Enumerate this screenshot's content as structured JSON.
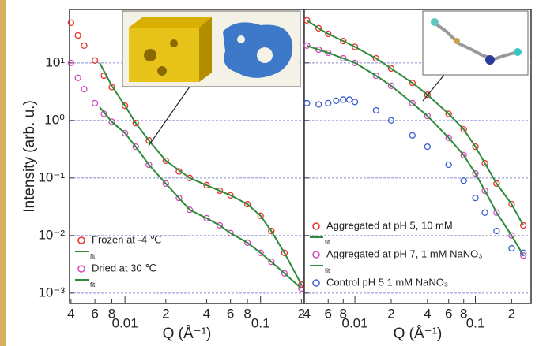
{
  "chart_data": [
    {
      "type": "scatter",
      "x_scale": "log",
      "y_scale": "log",
      "grid": true,
      "legend": "lower left",
      "ylabel": "Intensity (arb. u.)",
      "xlabel": "Q (Å⁻¹)",
      "xlim": [
        0.0039,
        0.21
      ],
      "ylim": [
        0.00066,
        85
      ],
      "xticks": [
        {
          "value": 0.004,
          "label": "4"
        },
        {
          "value": 0.006,
          "label": "6"
        },
        {
          "value": 0.008,
          "label": "8"
        },
        0.01,
        {
          "value": 0.02,
          "label": "2"
        },
        {
          "value": 0.04,
          "label": "4"
        },
        {
          "value": 0.06,
          "label": "6"
        },
        {
          "value": 0.08,
          "label": "8"
        },
        0.1,
        {
          "value": 0.2,
          "label": "2"
        }
      ],
      "yticks": [
        {
          "value": 0.001,
          "label": "10⁻³"
        },
        {
          "value": 0.01,
          "label": "10⁻²"
        },
        {
          "value": 0.1,
          "label": "10⁻¹"
        },
        {
          "value": 1,
          "label": "10⁰"
        },
        {
          "value": 10,
          "label": "10¹"
        }
      ],
      "series": [
        {
          "name": "Frozen at -4 ℃",
          "style": "markers",
          "color": "#e8302a",
          "x": [
            0.004,
            0.0045,
            0.005,
            0.006,
            0.007,
            0.008,
            0.01,
            0.012,
            0.015,
            0.02,
            0.025,
            0.03,
            0.04,
            0.05,
            0.06,
            0.08,
            0.1,
            0.12,
            0.15,
            0.2
          ],
          "values": [
            50,
            30,
            20,
            11,
            6,
            3.8,
            1.8,
            0.9,
            0.45,
            0.2,
            0.13,
            0.1,
            0.075,
            0.06,
            0.05,
            0.035,
            0.022,
            0.012,
            0.005,
            0.0014
          ]
        },
        {
          "name": "fit",
          "style": "line",
          "color": "#2e8b3a",
          "x": [
            0.0065,
            0.008,
            0.01,
            0.012,
            0.015,
            0.02,
            0.03,
            0.04,
            0.06,
            0.08,
            0.1,
            0.12,
            0.15,
            0.2
          ],
          "values": [
            10,
            4,
            1.8,
            0.9,
            0.45,
            0.2,
            0.1,
            0.075,
            0.05,
            0.035,
            0.022,
            0.012,
            0.005,
            0.0014
          ]
        },
        {
          "name": "Dried at 30 ℃",
          "style": "markers",
          "color": "#d646c0",
          "x": [
            0.004,
            0.0045,
            0.005,
            0.006,
            0.007,
            0.008,
            0.01,
            0.012,
            0.015,
            0.02,
            0.025,
            0.03,
            0.04,
            0.05,
            0.06,
            0.08,
            0.1,
            0.12,
            0.15,
            0.2
          ],
          "values": [
            10,
            5.5,
            3.5,
            2,
            1.3,
            0.95,
            0.6,
            0.35,
            0.17,
            0.08,
            0.045,
            0.028,
            0.02,
            0.015,
            0.011,
            0.0075,
            0.005,
            0.0035,
            0.0022,
            0.0012
          ]
        },
        {
          "name": "fit",
          "style": "line",
          "color": "#2e8b3a",
          "x": [
            0.0065,
            0.008,
            0.01,
            0.012,
            0.015,
            0.02,
            0.025,
            0.03,
            0.04,
            0.05,
            0.06,
            0.08,
            0.1,
            0.12,
            0.15,
            0.2
          ],
          "values": [
            1.7,
            0.95,
            0.6,
            0.35,
            0.17,
            0.08,
            0.045,
            0.028,
            0.02,
            0.015,
            0.011,
            0.0075,
            0.005,
            0.0035,
            0.0022,
            0.0012
          ]
        }
      ]
    },
    {
      "type": "scatter",
      "x_scale": "log",
      "y_scale": "log",
      "grid": true,
      "legend": "lower left",
      "xlabel": "Q (Å⁻¹)",
      "xlim": [
        0.0038,
        0.29
      ],
      "ylim": [
        0.00066,
        85
      ],
      "xticks": [
        {
          "value": 0.004,
          "label": "4"
        },
        {
          "value": 0.006,
          "label": "6"
        },
        {
          "value": 0.008,
          "label": "8"
        },
        0.01,
        {
          "value": 0.02,
          "label": "2"
        },
        {
          "value": 0.04,
          "label": "4"
        },
        {
          "value": 0.06,
          "label": "6"
        },
        {
          "value": 0.08,
          "label": "8"
        },
        0.1,
        {
          "value": 0.2,
          "label": "2"
        }
      ],
      "yticks": [
        0.001,
        0.01,
        0.1,
        1,
        10
      ],
      "series": [
        {
          "name": "Aggregated at pH 5, 10 mM",
          "style": "markers",
          "color": "#e8302a",
          "x": [
            0.004,
            0.005,
            0.006,
            0.008,
            0.01,
            0.015,
            0.02,
            0.03,
            0.04,
            0.06,
            0.08,
            0.1,
            0.12,
            0.15,
            0.2,
            0.25
          ],
          "values": [
            55,
            40,
            32,
            24,
            19,
            12,
            8,
            4.5,
            2.8,
            1.3,
            0.7,
            0.35,
            0.18,
            0.08,
            0.035,
            0.015
          ]
        },
        {
          "name": "fit",
          "style": "line",
          "color": "#2e8b3a",
          "x": [
            0.004,
            0.005,
            0.006,
            0.008,
            0.01,
            0.015,
            0.02,
            0.03,
            0.04,
            0.06,
            0.08,
            0.1,
            0.12,
            0.15,
            0.2,
            0.25
          ],
          "values": [
            55,
            40,
            32,
            24,
            19,
            12,
            8,
            4.5,
            2.8,
            1.3,
            0.7,
            0.35,
            0.18,
            0.08,
            0.035,
            0.015
          ]
        },
        {
          "name": "Aggregated at pH 7, 1 mM NaNO₃",
          "style": "markers",
          "color": "#d646c0",
          "x": [
            0.004,
            0.005,
            0.006,
            0.008,
            0.01,
            0.015,
            0.02,
            0.03,
            0.04,
            0.06,
            0.08,
            0.1,
            0.12,
            0.15,
            0.2,
            0.25
          ],
          "values": [
            20,
            17,
            15,
            12,
            10,
            6,
            4,
            2,
            1.2,
            0.5,
            0.25,
            0.12,
            0.06,
            0.025,
            0.01,
            0.0045
          ]
        },
        {
          "name": "fit",
          "style": "line",
          "color": "#2e8b3a",
          "x": [
            0.004,
            0.005,
            0.006,
            0.008,
            0.01,
            0.015,
            0.02,
            0.03,
            0.04,
            0.06,
            0.08,
            0.1,
            0.12,
            0.15,
            0.2,
            0.25
          ],
          "values": [
            20,
            17,
            15,
            12,
            10,
            6,
            4,
            2,
            1.2,
            0.5,
            0.25,
            0.12,
            0.06,
            0.025,
            0.01,
            0.0045
          ]
        },
        {
          "name": "Control pH 5 1 mM NaNO₃",
          "style": "markers",
          "color": "#3a5fcf",
          "x": [
            0.004,
            0.005,
            0.006,
            0.007,
            0.008,
            0.009,
            0.01,
            0.015,
            0.02,
            0.03,
            0.04,
            0.06,
            0.08,
            0.1,
            0.12,
            0.15,
            0.2,
            0.25
          ],
          "values": [
            2,
            1.9,
            2,
            2.2,
            2.3,
            2.3,
            2.1,
            1.5,
            1,
            0.55,
            0.35,
            0.17,
            0.09,
            0.045,
            0.025,
            0.012,
            0.006,
            0.005
          ]
        }
      ]
    }
  ]
}
